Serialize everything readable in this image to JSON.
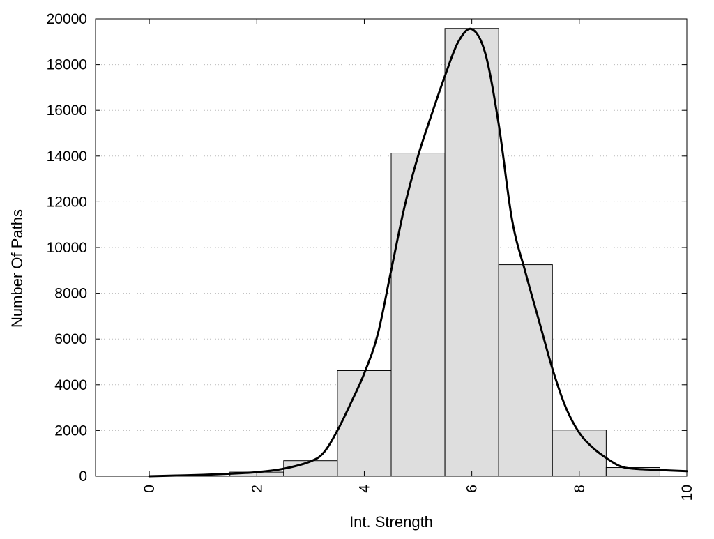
{
  "chart_data": {
    "type": "bar",
    "xlabel": "Int. Strength",
    "ylabel": "Number Of Paths",
    "xlim": [
      -1,
      10
    ],
    "ylim": [
      0,
      20000
    ],
    "x_ticks": [
      "0",
      "2",
      "4",
      "6",
      "8",
      "10"
    ],
    "y_ticks": [
      "0",
      "2000",
      "4000",
      "6000",
      "8000",
      "10000",
      "12000",
      "14000",
      "16000",
      "18000",
      "20000"
    ],
    "grid": "horizontal dotted",
    "bar_width": 1,
    "bars": [
      {
        "x": 0,
        "value": 0
      },
      {
        "x": 1,
        "value": 0
      },
      {
        "x": 2,
        "value": 180
      },
      {
        "x": 3,
        "value": 680
      },
      {
        "x": 4,
        "value": 4620
      },
      {
        "x": 5,
        "value": 14130
      },
      {
        "x": 6,
        "value": 19580
      },
      {
        "x": 7,
        "value": 9250
      },
      {
        "x": 8,
        "value": 2020
      },
      {
        "x": 9,
        "value": 380
      }
    ],
    "curve": {
      "x": [
        0,
        0.5,
        1,
        1.5,
        2,
        2.5,
        3,
        3.25,
        3.5,
        3.75,
        4,
        4.25,
        4.5,
        4.75,
        5,
        5.25,
        5.5,
        5.75,
        6,
        6.25,
        6.5,
        6.75,
        7,
        7.25,
        7.5,
        7.75,
        8,
        8.25,
        8.5,
        8.75,
        9,
        9.5,
        10
      ],
      "y": [
        0,
        30,
        60,
        110,
        180,
        330,
        650,
        1050,
        2000,
        3200,
        4500,
        6200,
        9000,
        11800,
        14000,
        15800,
        17500,
        19000,
        19550,
        18500,
        15400,
        11200,
        8900,
        6800,
        4700,
        3000,
        1900,
        1250,
        800,
        450,
        330,
        270,
        220
      ]
    },
    "colors": {
      "bar_fill": "#dedede",
      "bar_stroke": "#000000",
      "curve": "#000000",
      "grid": "#bbbbbb"
    }
  }
}
